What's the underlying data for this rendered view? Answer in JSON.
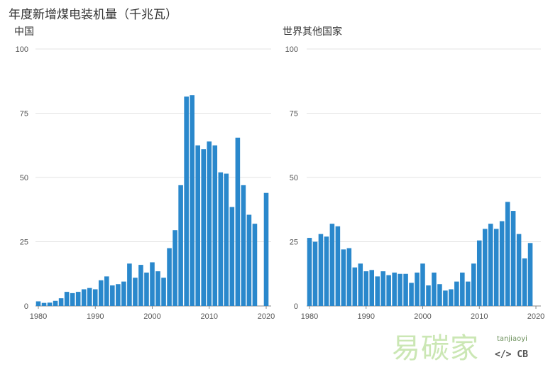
{
  "title": "年度新增煤电装机量（千兆瓦）",
  "watermark": {
    "brand": "易碳家",
    "domain": "tanjiaoyi",
    "badge": "</> CB"
  },
  "chart_data": [
    {
      "type": "bar",
      "title": "中国",
      "ylim": [
        0,
        100
      ],
      "yticks": [
        0,
        25,
        50,
        75,
        100
      ],
      "xticks": [
        1980,
        1990,
        2000,
        2010,
        2020
      ],
      "x": [
        1980,
        1981,
        1982,
        1983,
        1984,
        1985,
        1986,
        1987,
        1988,
        1989,
        1990,
        1991,
        1992,
        1993,
        1994,
        1995,
        1996,
        1997,
        1998,
        1999,
        2000,
        2001,
        2002,
        2003,
        2004,
        2005,
        2006,
        2007,
        2008,
        2009,
        2010,
        2011,
        2012,
        2013,
        2014,
        2015,
        2016,
        2017,
        2018,
        2019,
        2020
      ],
      "values": [
        1.8,
        1.2,
        1.3,
        2.0,
        3.0,
        5.5,
        5.0,
        5.5,
        6.5,
        7.0,
        6.5,
        10.0,
        11.5,
        8.0,
        8.5,
        9.5,
        16.5,
        11.0,
        16.0,
        13.0,
        17.0,
        13.5,
        11.0,
        22.5,
        29.5,
        47.0,
        81.5,
        82.0,
        62.5,
        61.0,
        64.0,
        62.5,
        52.0,
        51.5,
        38.5,
        65.5,
        47.0,
        35.5,
        32.0,
        0,
        44.0
      ],
      "grid": true
    },
    {
      "type": "bar",
      "title": "世界其他国家",
      "ylim": [
        0,
        100
      ],
      "yticks": [
        0,
        25,
        50,
        75,
        100
      ],
      "xticks": [
        1980,
        1990,
        2000,
        2010,
        2020
      ],
      "x": [
        1980,
        1981,
        1982,
        1983,
        1984,
        1985,
        1986,
        1987,
        1988,
        1989,
        1990,
        1991,
        1992,
        1993,
        1994,
        1995,
        1996,
        1997,
        1998,
        1999,
        2000,
        2001,
        2002,
        2003,
        2004,
        2005,
        2006,
        2007,
        2008,
        2009,
        2010,
        2011,
        2012,
        2013,
        2014,
        2015,
        2016,
        2017,
        2018,
        2019
      ],
      "values": [
        26.5,
        25.0,
        28.0,
        27.0,
        32.0,
        31.0,
        22.0,
        22.5,
        15.0,
        16.5,
        13.5,
        14.0,
        11.5,
        13.5,
        12.0,
        13.0,
        12.5,
        12.5,
        9.0,
        13.0,
        16.5,
        8.0,
        13.0,
        8.5,
        6.0,
        6.5,
        9.5,
        13.0,
        9.5,
        16.5,
        25.5,
        30.0,
        32.0,
        30.0,
        33.0,
        40.5,
        37.0,
        28.0,
        18.5,
        24.5
      ],
      "grid": true
    }
  ]
}
